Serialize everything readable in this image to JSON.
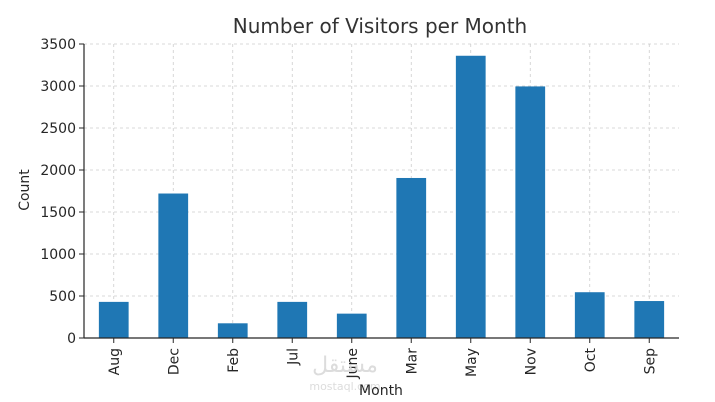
{
  "chart_data": {
    "type": "bar",
    "title": "Number of Visitors per Month",
    "xlabel": "Month",
    "ylabel": "Count",
    "categories": [
      "Aug",
      "Dec",
      "Feb",
      "Jul",
      "June",
      "Mar",
      "May",
      "Nov",
      "Oct",
      "Sep"
    ],
    "values": [
      430,
      1720,
      175,
      430,
      290,
      1905,
      3360,
      2995,
      545,
      440
    ],
    "ylim": [
      0,
      3500
    ],
    "yticks": [
      0,
      500,
      1000,
      1500,
      2000,
      2500,
      3000,
      3500
    ],
    "grid": true,
    "bar_color": "#1f77b4"
  },
  "watermark": {
    "arabic": "مستقل",
    "latin": "mostaql.com"
  }
}
